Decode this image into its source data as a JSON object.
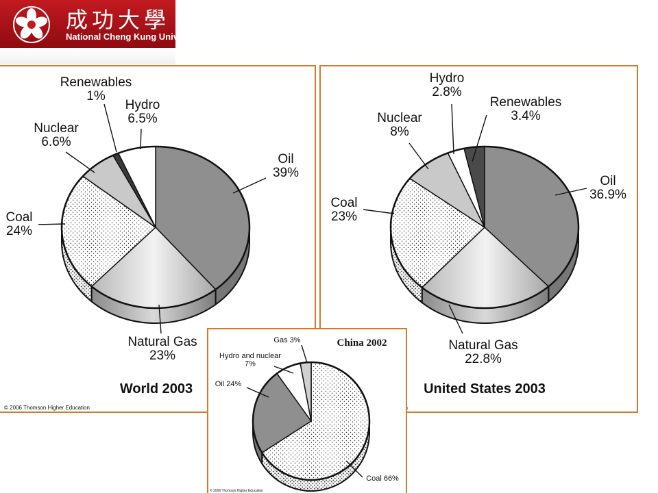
{
  "header": {
    "university_cjk": "成功大學",
    "university_name": "National Cheng Kung University"
  },
  "credit": "© 2006 Thomson Higher Education",
  "chart_data": [
    {
      "type": "pie",
      "title": "World 2003",
      "slices": [
        {
          "label": "Oil",
          "value": 39,
          "display": "39%"
        },
        {
          "label": "Natural Gas",
          "value": 23,
          "display": "23%"
        },
        {
          "label": "Coal",
          "value": 24,
          "display": "24%"
        },
        {
          "label": "Nuclear",
          "value": 6.6,
          "display": "6.6%"
        },
        {
          "label": "Renewables",
          "value": 1,
          "display": "1%"
        },
        {
          "label": "Hydro",
          "value": 6.5,
          "display": "6.5%"
        }
      ]
    },
    {
      "type": "pie",
      "title": "United States 2003",
      "slices": [
        {
          "label": "Oil",
          "value": 36.9,
          "display": "36.9%"
        },
        {
          "label": "Natural Gas",
          "value": 22.8,
          "display": "22.8%"
        },
        {
          "label": "Coal",
          "value": 23,
          "display": "23%"
        },
        {
          "label": "Nuclear",
          "value": 8,
          "display": "8%"
        },
        {
          "label": "Hydro",
          "value": 2.8,
          "display": "2.8%"
        },
        {
          "label": "Renewables",
          "value": 3.4,
          "display": "3.4%"
        }
      ]
    },
    {
      "type": "pie",
      "title": "China 2002",
      "slices": [
        {
          "label": "Coal",
          "value": 66,
          "display": "Coal 66%"
        },
        {
          "label": "Oil",
          "value": 24,
          "display": "Oil 24%"
        },
        {
          "label": "Hydro and nuclear",
          "value": 7,
          "display": "7%"
        },
        {
          "label": "Gas",
          "value": 3,
          "display": "Gas 3%"
        }
      ]
    }
  ]
}
